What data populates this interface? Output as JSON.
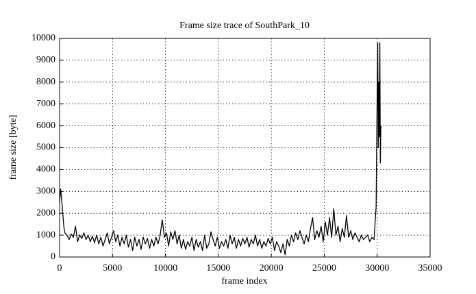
{
  "chart_data": {
    "type": "line",
    "title": "Frame size trace of SouthPark_10",
    "x_label": "frame index",
    "y_label": "frame size [byte]",
    "xlim": [
      0,
      35000
    ],
    "xticks": [
      0,
      5000,
      10000,
      15000,
      20000,
      25000,
      30000,
      35000
    ],
    "ylim": [
      0,
      10000
    ],
    "yticks": [
      0,
      1000,
      2000,
      3000,
      4000,
      5000,
      6000,
      7000,
      8000,
      9000,
      10000
    ],
    "grid": true,
    "series": [
      {
        "color": "#000000",
        "x": [
          0,
          100,
          200,
          300,
          400,
          500,
          700,
          900,
          1100,
          1300,
          1500,
          1700,
          1900,
          2100,
          2300,
          2500,
          2700,
          2900,
          3100,
          3300,
          3500,
          3700,
          3900,
          4100,
          4300,
          4500,
          4700,
          4900,
          5100,
          5300,
          5500,
          5700,
          5900,
          6100,
          6300,
          6500,
          6700,
          6900,
          7100,
          7300,
          7500,
          7700,
          7900,
          8100,
          8300,
          8500,
          8700,
          8900,
          9100,
          9300,
          9500,
          9700,
          9900,
          10100,
          10300,
          10500,
          10700,
          10900,
          11100,
          11300,
          11500,
          11700,
          11900,
          12100,
          12300,
          12500,
          12700,
          12900,
          13100,
          13300,
          13500,
          13700,
          13900,
          14100,
          14300,
          14500,
          14700,
          14900,
          15100,
          15300,
          15500,
          15700,
          15900,
          16100,
          16300,
          16500,
          16700,
          16900,
          17100,
          17300,
          17500,
          17700,
          17900,
          18100,
          18300,
          18500,
          18700,
          18900,
          19100,
          19300,
          19500,
          19700,
          19900,
          20100,
          20300,
          20500,
          20700,
          20900,
          21100,
          21300,
          21500,
          21700,
          21900,
          22100,
          22300,
          22500,
          22700,
          22900,
          23100,
          23300,
          23500,
          23700,
          23900,
          24100,
          24300,
          24500,
          24700,
          24900,
          25100,
          25300,
          25500,
          25700,
          25900,
          26100,
          26300,
          26500,
          26700,
          26900,
          27100,
          27300,
          27500,
          27700,
          27900,
          28100,
          28300,
          28500,
          28700,
          29100,
          29300,
          29500,
          29700,
          29900,
          30000,
          30050,
          30100,
          30150,
          30200,
          30250,
          30300,
          30350
        ],
        "values": [
          2500,
          3100,
          2600,
          2000,
          1400,
          1100,
          1000,
          800,
          1050,
          900,
          1400,
          700,
          1000,
          850,
          1100,
          800,
          1000,
          700,
          950,
          650,
          1000,
          600,
          900,
          500,
          800,
          1100,
          600,
          900,
          1200,
          700,
          1000,
          500,
          900,
          600,
          1000,
          450,
          800,
          300,
          900,
          500,
          800,
          350,
          900,
          600,
          850,
          400,
          800,
          500,
          900,
          600,
          1000,
          1700,
          900,
          1100,
          500,
          1150,
          800,
          1200,
          600,
          1000,
          400,
          800,
          350,
          700,
          500,
          900,
          300,
          800,
          450,
          700,
          300,
          1000,
          400,
          600,
          1150,
          800,
          500,
          900,
          400,
          700,
          500,
          800,
          400,
          1000,
          600,
          900,
          400,
          800,
          500,
          850,
          600,
          900,
          450,
          800,
          600,
          1000,
          500,
          800,
          400,
          700,
          500,
          850,
          600,
          900,
          300,
          700,
          500,
          200,
          600,
          100,
          800,
          500,
          1000,
          700,
          1100,
          800,
          1200,
          900,
          600,
          1000,
          700,
          1300,
          1800,
          800,
          1200,
          900,
          1400,
          700,
          1600,
          1000,
          1800,
          900,
          2200,
          1000,
          1400,
          700,
          1300,
          900,
          1900,
          900,
          1200,
          800,
          1100,
          900,
          700,
          1000,
          800,
          1000,
          700,
          900,
          800,
          2300,
          7500,
          9800,
          5000,
          8000,
          5500,
          9800,
          4300,
          6000
        ]
      }
    ]
  }
}
